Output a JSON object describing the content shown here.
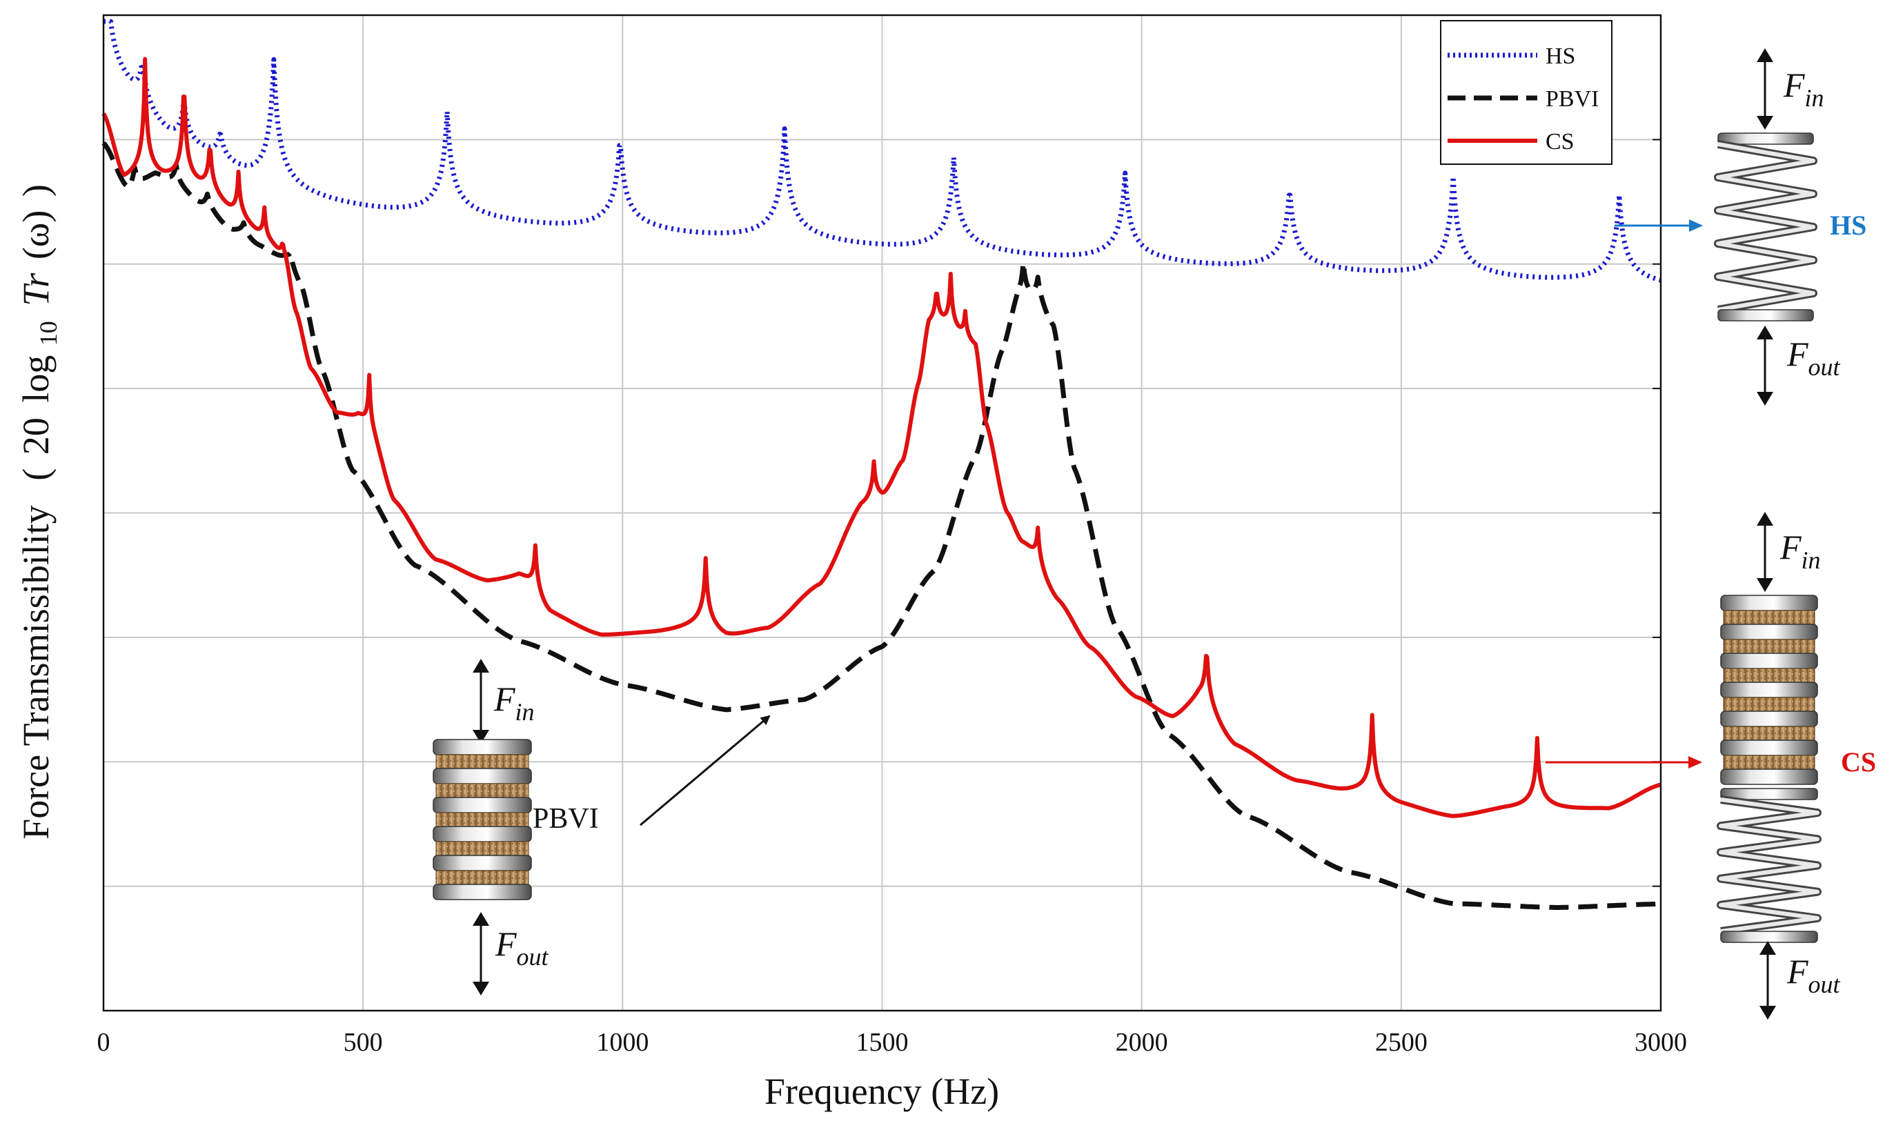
{
  "chart_data": {
    "type": "line",
    "title": "",
    "xlabel": "Frequency (Hz)",
    "ylabel_main": "Force Transmissibility",
    "ylabel_formula": {
      "open": "(",
      "coef": "20",
      "log": "log",
      "base": "10",
      "fn": "Tr",
      "arg": "(ω)",
      "close": ")"
    },
    "xlim": [
      0,
      3000
    ],
    "x_ticks": [
      0,
      500,
      1000,
      1500,
      2000,
      2500,
      3000
    ],
    "x_tick_labels": [
      "0",
      "500",
      "1000",
      "1500",
      "2000",
      "2500",
      "3000"
    ],
    "ylim": [
      0,
      8
    ],
    "y_grid": [
      1,
      2,
      3,
      4,
      5,
      6,
      7
    ],
    "grid": true,
    "legend": {
      "position": "top-right",
      "entries": [
        {
          "label": "HS",
          "color": "#1a1ad0",
          "style": "dotted"
        },
        {
          "label": "PBVI",
          "color": "#111111",
          "style": "dashed"
        },
        {
          "label": "CS",
          "color": "#e01010",
          "style": "solid"
        }
      ]
    },
    "series": [
      {
        "name": "HS",
        "color": "#1a1ad0",
        "style": "dotted",
        "base_points": [
          [
            0,
            7.3
          ],
          [
            150,
            6.7
          ],
          [
            330,
            6.35
          ],
          [
            660,
            6.2
          ],
          [
            1000,
            6.1
          ],
          [
            1320,
            6.02
          ],
          [
            1640,
            5.94
          ],
          [
            1970,
            5.87
          ],
          [
            2280,
            5.81
          ],
          [
            2600,
            5.76
          ],
          [
            2920,
            5.73
          ],
          [
            3000,
            5.72
          ]
        ],
        "peaks": [
          {
            "x": 4,
            "h": 1.4,
            "w": 6
          },
          {
            "x": 75,
            "h": 0.4,
            "w": 8
          },
          {
            "x": 155,
            "h": 0.4,
            "w": 8
          },
          {
            "x": 225,
            "h": 0.25,
            "w": 8
          },
          {
            "x": 328,
            "h": 1.15,
            "w": 10
          },
          {
            "x": 662,
            "h": 0.9,
            "w": 10
          },
          {
            "x": 995,
            "h": 0.8,
            "w": 10
          },
          {
            "x": 1312,
            "h": 0.95,
            "w": 10
          },
          {
            "x": 1638,
            "h": 0.8,
            "w": 10
          },
          {
            "x": 1968,
            "h": 0.75,
            "w": 10
          },
          {
            "x": 2285,
            "h": 0.7,
            "w": 10
          },
          {
            "x": 2600,
            "h": 0.85,
            "w": 10
          },
          {
            "x": 2920,
            "h": 0.75,
            "w": 10
          }
        ]
      },
      {
        "name": "PBVI",
        "color": "#111111",
        "style": "dashed",
        "base_points": [
          [
            0,
            6.9
          ],
          [
            50,
            6.45
          ],
          [
            100,
            6.6
          ],
          [
            150,
            6.45
          ],
          [
            200,
            6.3
          ],
          [
            250,
            6.15
          ],
          [
            300,
            6.05
          ],
          [
            350,
            5.95
          ],
          [
            380,
            5.75
          ],
          [
            420,
            5.1
          ],
          [
            480,
            4.3
          ],
          [
            600,
            3.55
          ],
          [
            800,
            2.95
          ],
          [
            1000,
            2.6
          ],
          [
            1200,
            2.4
          ],
          [
            1350,
            2.48
          ],
          [
            1500,
            2.9
          ],
          [
            1600,
            3.5
          ],
          [
            1680,
            4.4
          ],
          [
            1730,
            5.2
          ],
          [
            1760,
            5.55
          ],
          [
            1800,
            5.55
          ],
          [
            1830,
            5.4
          ],
          [
            1870,
            4.3
          ],
          [
            1950,
            3.05
          ],
          [
            2050,
            2.2
          ],
          [
            2200,
            1.55
          ],
          [
            2400,
            1.1
          ],
          [
            2600,
            0.85
          ],
          [
            2800,
            0.82
          ],
          [
            3000,
            0.85
          ]
        ],
        "peaks": [
          {
            "x": 60,
            "h": 0.25,
            "w": 10
          },
          {
            "x": 140,
            "h": 0.25,
            "w": 10
          },
          {
            "x": 200,
            "h": 0.18,
            "w": 10
          },
          {
            "x": 270,
            "h": 0.15,
            "w": 10
          },
          {
            "x": 360,
            "h": 0.15,
            "w": 10
          },
          {
            "x": 1772,
            "h": 0.4,
            "w": 8
          },
          {
            "x": 1800,
            "h": 0.25,
            "w": 8
          }
        ]
      },
      {
        "name": "CS",
        "color": "#e01010",
        "style": "solid",
        "base_points": [
          [
            0,
            7.1
          ],
          [
            40,
            6.55
          ],
          [
            80,
            6.55
          ],
          [
            120,
            6.5
          ],
          [
            160,
            6.45
          ],
          [
            200,
            6.4
          ],
          [
            260,
            6.2
          ],
          [
            320,
            6.0
          ],
          [
            350,
            5.9
          ],
          [
            370,
            5.5
          ],
          [
            400,
            5.05
          ],
          [
            450,
            4.7
          ],
          [
            490,
            4.65
          ],
          [
            520,
            4.45
          ],
          [
            560,
            4.0
          ],
          [
            640,
            3.55
          ],
          [
            740,
            3.38
          ],
          [
            800,
            3.4
          ],
          [
            860,
            3.1
          ],
          [
            960,
            2.95
          ],
          [
            1060,
            2.97
          ],
          [
            1150,
            3.0
          ],
          [
            1200,
            2.92
          ],
          [
            1280,
            3.0
          ],
          [
            1380,
            3.35
          ],
          [
            1460,
            3.95
          ],
          [
            1500,
            4.0
          ],
          [
            1540,
            4.3
          ],
          [
            1570,
            4.9
          ],
          [
            1590,
            5.35
          ],
          [
            1680,
            5.2
          ],
          [
            1700,
            4.6
          ],
          [
            1740,
            3.9
          ],
          [
            1770,
            3.65
          ],
          [
            1840,
            3.2
          ],
          [
            1900,
            2.85
          ],
          [
            1990,
            2.45
          ],
          [
            2060,
            2.28
          ],
          [
            2110,
            2.4
          ],
          [
            2180,
            2.05
          ],
          [
            2300,
            1.78
          ],
          [
            2400,
            1.68
          ],
          [
            2500,
            1.58
          ],
          [
            2600,
            1.5
          ],
          [
            2700,
            1.56
          ],
          [
            2800,
            1.56
          ],
          [
            2900,
            1.58
          ],
          [
            3000,
            1.78
          ]
        ],
        "peaks": [
          {
            "x": 80,
            "h": 1.0,
            "w": 4
          },
          {
            "x": 155,
            "h": 0.95,
            "w": 4
          },
          {
            "x": 205,
            "h": 0.45,
            "w": 4
          },
          {
            "x": 260,
            "h": 0.4,
            "w": 4
          },
          {
            "x": 310,
            "h": 0.3,
            "w": 4
          },
          {
            "x": 345,
            "h": 0.15,
            "w": 4
          },
          {
            "x": 512,
            "h": 0.55,
            "w": 4
          },
          {
            "x": 832,
            "h": 0.45,
            "w": 5
          },
          {
            "x": 1160,
            "h": 0.6,
            "w": 5
          },
          {
            "x": 1484,
            "h": 0.36,
            "w": 5
          },
          {
            "x": 1605,
            "h": 0.35,
            "w": 5
          },
          {
            "x": 1632,
            "h": 0.5,
            "w": 4
          },
          {
            "x": 1660,
            "h": 0.25,
            "w": 4
          },
          {
            "x": 1800,
            "h": 0.35,
            "w": 5
          },
          {
            "x": 2125,
            "h": 0.55,
            "w": 5
          },
          {
            "x": 2444,
            "h": 0.7,
            "w": 5
          },
          {
            "x": 2762,
            "h": 0.6,
            "w": 5
          }
        ]
      }
    ],
    "annotations": {
      "pbvi_label": "PBVI",
      "force_symbol": "F",
      "force_in_sub": "in",
      "force_out_sub": "out",
      "hs_tag": "HS",
      "cs_tag": "CS",
      "hs_tag_color": "#1a7ac8",
      "cs_tag_color": "#e01010"
    }
  }
}
